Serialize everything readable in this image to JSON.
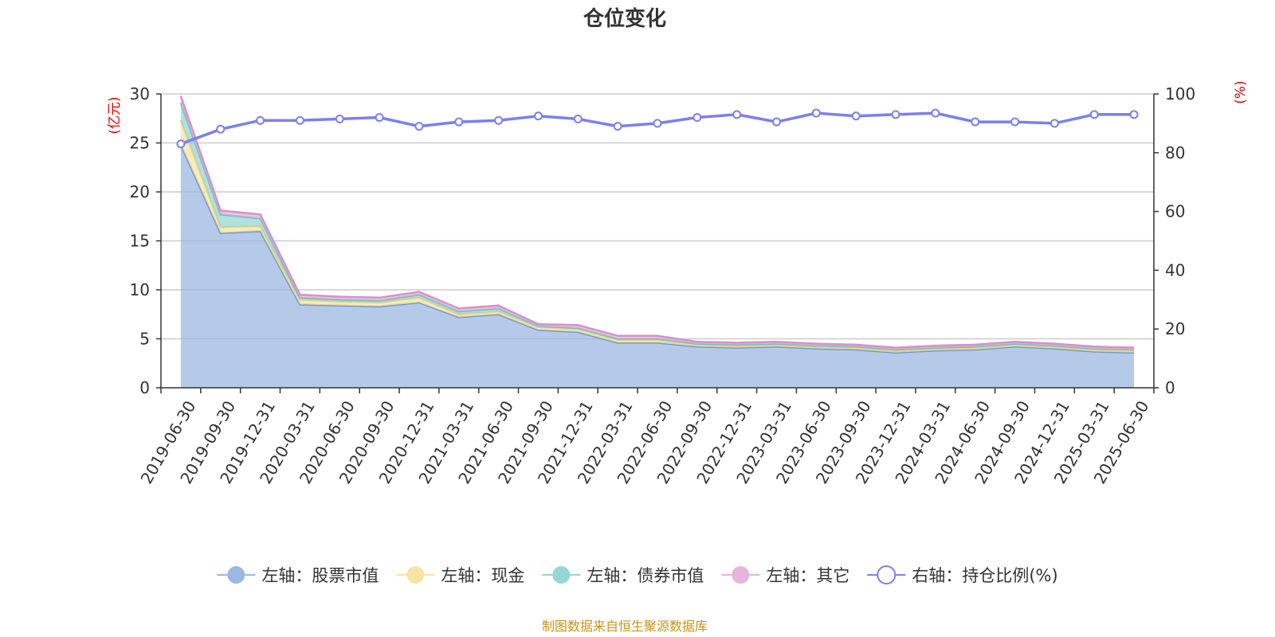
{
  "chart_data": {
    "type": "area",
    "title": "仓位变化",
    "categories": [
      "2019-06-30",
      "2019-09-30",
      "2019-12-31",
      "2020-03-31",
      "2020-06-30",
      "2020-09-30",
      "2020-12-31",
      "2021-03-31",
      "2021-06-30",
      "2021-09-30",
      "2021-12-31",
      "2022-03-31",
      "2022-06-30",
      "2022-09-30",
      "2022-12-31",
      "2023-03-31",
      "2023-06-30",
      "2023-09-30",
      "2023-12-31",
      "2024-03-31",
      "2024-06-30",
      "2024-09-30",
      "2024-12-31",
      "2025-03-31",
      "2025-06-30"
    ],
    "left_axis": {
      "unit": "(亿元)",
      "ylim": [
        0,
        30
      ],
      "ticks": [
        "0",
        "5",
        "10",
        "15",
        "20",
        "25",
        "30"
      ]
    },
    "right_axis": {
      "unit": "(%)",
      "ylim": [
        0,
        100
      ],
      "ticks": [
        "0",
        "20",
        "40",
        "60",
        "80",
        "100"
      ]
    },
    "stacked_series": [
      {
        "name": "左轴：股票市值",
        "color": "#9bb8e0",
        "values": [
          24.8,
          15.8,
          16.0,
          8.5,
          8.4,
          8.3,
          8.7,
          7.2,
          7.5,
          5.9,
          5.7,
          4.6,
          4.6,
          4.2,
          4.1,
          4.2,
          4.0,
          3.9,
          3.6,
          3.8,
          3.9,
          4.2,
          4.0,
          3.7,
          3.6
        ]
      },
      {
        "name": "左轴：现金",
        "color": "#f8e4a0",
        "values": [
          2.5,
          0.6,
          0.5,
          0.5,
          0.4,
          0.4,
          0.5,
          0.3,
          0.3,
          0.3,
          0.3,
          0.3,
          0.3,
          0.2,
          0.2,
          0.2,
          0.2,
          0.2,
          0.2,
          0.2,
          0.2,
          0.2,
          0.2,
          0.2,
          0.2
        ]
      },
      {
        "name": "左轴：债券市值",
        "color": "#97d6d4",
        "values": [
          1.8,
          1.3,
          0.8,
          0.2,
          0.2,
          0.2,
          0.3,
          0.3,
          0.3,
          0.1,
          0.1,
          0.1,
          0.1,
          0.1,
          0.1,
          0.1,
          0.1,
          0.1,
          0.1,
          0.1,
          0.1,
          0.1,
          0.1,
          0.1,
          0.1
        ]
      },
      {
        "name": "左轴：其它",
        "color": "#e6b4dc",
        "values": [
          0.7,
          0.4,
          0.4,
          0.3,
          0.3,
          0.3,
          0.3,
          0.3,
          0.3,
          0.2,
          0.3,
          0.3,
          0.3,
          0.2,
          0.2,
          0.2,
          0.2,
          0.2,
          0.2,
          0.2,
          0.2,
          0.2,
          0.2,
          0.2,
          0.2
        ]
      }
    ],
    "line_series": {
      "name": "右轴：持仓比例(%)",
      "color": "#7b7ff0",
      "axis": "right",
      "values": [
        83.0,
        88.0,
        91.0,
        91.0,
        91.5,
        92.0,
        89.0,
        90.5,
        91.0,
        92.5,
        91.5,
        89.0,
        90.0,
        92.0,
        93.0,
        90.5,
        93.5,
        92.5,
        93.0,
        93.5,
        90.5,
        90.5,
        90.0,
        93.0,
        93.0
      ]
    },
    "grid": true,
    "legend": "bottom"
  },
  "source_note": "制图数据来自恒生聚源数据库"
}
